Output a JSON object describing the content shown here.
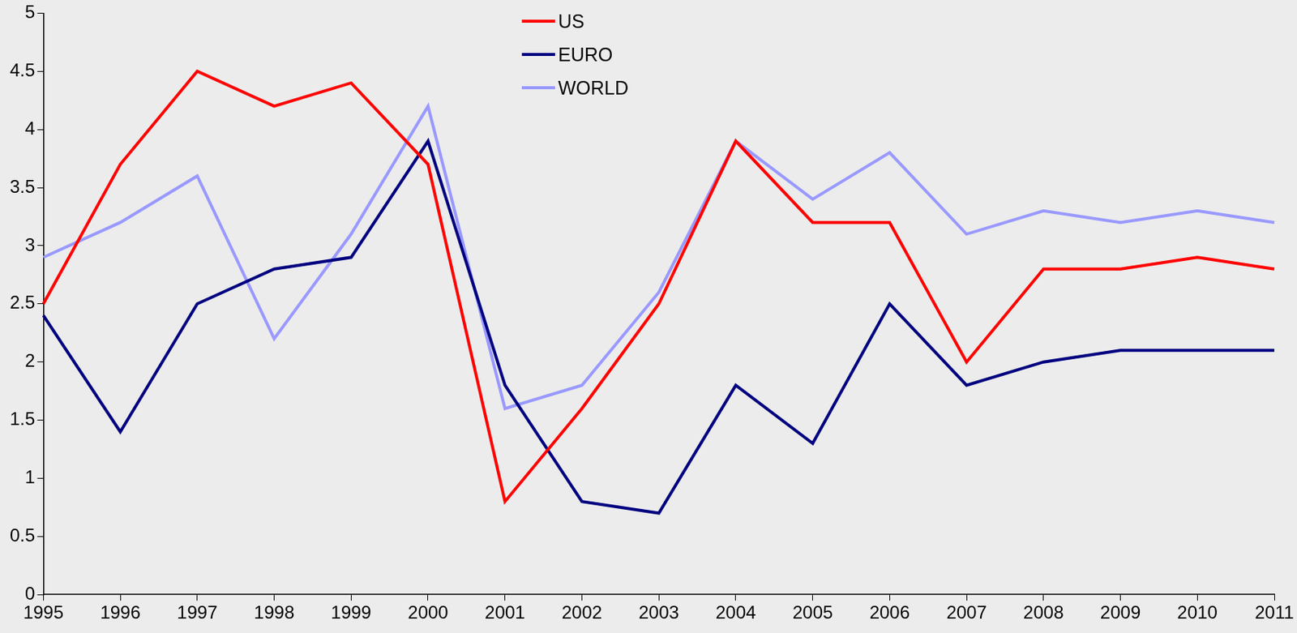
{
  "chart_data": {
    "type": "line",
    "categories": [
      "1995",
      "1996",
      "1997",
      "1998",
      "1999",
      "2000",
      "2001",
      "2002",
      "2003",
      "2004",
      "2005",
      "2006",
      "2007",
      "2008",
      "2009",
      "2010",
      "2011"
    ],
    "series": [
      {
        "name": "US",
        "color": "#ff0000",
        "values": [
          2.5,
          3.7,
          4.5,
          4.2,
          4.4,
          3.7,
          0.8,
          1.6,
          2.5,
          3.9,
          3.2,
          3.2,
          2.0,
          2.8,
          2.8,
          2.9,
          2.8
        ]
      },
      {
        "name": "EURO",
        "color": "#000080",
        "values": [
          2.4,
          1.4,
          2.5,
          2.8,
          2.9,
          3.9,
          1.8,
          0.8,
          0.7,
          1.8,
          1.3,
          2.5,
          1.8,
          2.0,
          2.1,
          2.1,
          2.1
        ]
      },
      {
        "name": "WORLD",
        "color": "#9999ff",
        "values": [
          2.9,
          3.2,
          3.6,
          2.2,
          3.1,
          4.2,
          1.6,
          1.8,
          2.6,
          3.9,
          3.4,
          3.8,
          3.1,
          3.3,
          3.2,
          3.3,
          3.2
        ]
      }
    ],
    "ylim": [
      0,
      5
    ],
    "yticks": [
      0,
      0.5,
      1,
      1.5,
      2,
      2.5,
      3,
      3.5,
      4,
      4.5,
      5
    ],
    "grid": false,
    "legend": "top",
    "marker": "none",
    "line_style": "solid"
  }
}
